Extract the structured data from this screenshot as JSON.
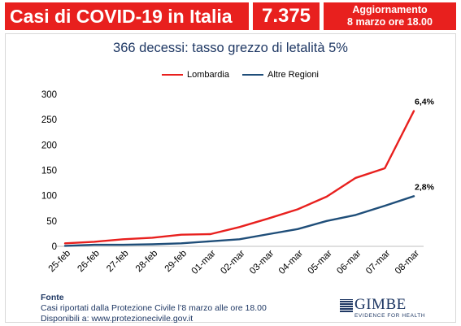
{
  "header": {
    "title": "Casi di COVID-19 in Italia",
    "total_cases": "7.375",
    "update_label": "Aggiornamento",
    "update_date": "8 marzo ore 18.00",
    "accent_color": "#e8201e"
  },
  "chart_data": {
    "type": "line",
    "title": "366 decessi: tasso grezzo di letalità 5%",
    "xlabel": "",
    "ylabel": "",
    "ylim": [
      0,
      300
    ],
    "yticks": [
      0,
      50,
      100,
      150,
      200,
      250,
      300
    ],
    "grid": false,
    "legend": "top",
    "categories": [
      "25-feb",
      "26-feb",
      "27-feb",
      "28-feb",
      "29-feb",
      "01-mar",
      "02-mar",
      "03-mar",
      "04-mar",
      "05-mar",
      "06-mar",
      "07-mar",
      "08-mar"
    ],
    "series": [
      {
        "name": "Lombardia",
        "color": "#e8201e",
        "values": [
          6,
          9,
          14,
          17,
          23,
          24,
          38,
          55,
          73,
          98,
          135,
          154,
          267
        ],
        "end_label": "6,4%"
      },
      {
        "name": "Altre Regioni",
        "color": "#1f4e79",
        "values": [
          1,
          3,
          3,
          4,
          6,
          10,
          14,
          24,
          34,
          50,
          62,
          80,
          99
        ],
        "end_label": "2,8%"
      }
    ]
  },
  "footer": {
    "source_heading": "Fonte",
    "source_line": "Casi riportati dalla Protezione Civile  l’8 marzo alle ore 18.00",
    "available_line": "Disponibili a: www.protezionecivile.gov.it"
  },
  "logo": {
    "name": "GIMBE",
    "tagline": "EVIDENCE FOR HEALTH"
  }
}
